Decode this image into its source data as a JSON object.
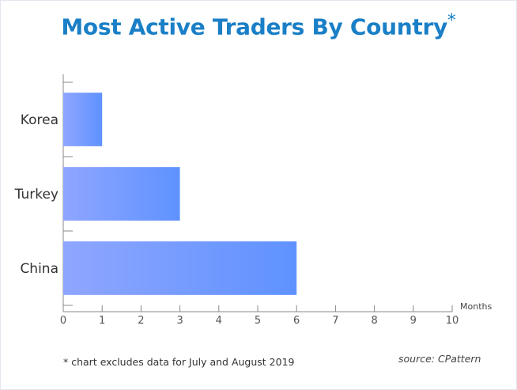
{
  "title": "Most Active Traders By Country",
  "title_mark": "*",
  "footnote": "* chart excludes data for July and August 2019",
  "source": "source: CPattern",
  "colors": {
    "title": "#1a7fc6",
    "bar_start": "#8fa6ff",
    "bar_end": "#5f92ff",
    "axis": "#888888"
  },
  "chart_data": {
    "type": "bar",
    "orientation": "horizontal",
    "categories": [
      "Korea",
      "Turkey",
      "China"
    ],
    "values": [
      1,
      3,
      6
    ],
    "title": "Most Active Traders By Country*",
    "xlabel": "Months",
    "ylabel": "",
    "xlim": [
      0,
      10
    ],
    "xticks": [
      0,
      1,
      2,
      3,
      4,
      5,
      6,
      7,
      8,
      9,
      10
    ],
    "grid": false,
    "legend": "none"
  }
}
